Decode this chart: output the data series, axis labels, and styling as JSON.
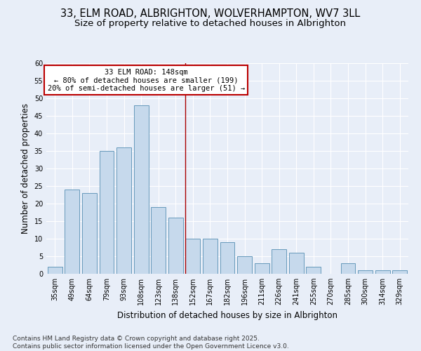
{
  "title_line1": "33, ELM ROAD, ALBRIGHTON, WOLVERHAMPTON, WV7 3LL",
  "title_line2": "Size of property relative to detached houses in Albrighton",
  "xlabel": "Distribution of detached houses by size in Albrighton",
  "ylabel": "Number of detached properties",
  "bar_labels": [
    "35sqm",
    "49sqm",
    "64sqm",
    "79sqm",
    "93sqm",
    "108sqm",
    "123sqm",
    "138sqm",
    "152sqm",
    "167sqm",
    "182sqm",
    "196sqm",
    "211sqm",
    "226sqm",
    "241sqm",
    "255sqm",
    "270sqm",
    "285sqm",
    "300sqm",
    "314sqm",
    "329sqm"
  ],
  "bar_values": [
    2,
    24,
    23,
    35,
    36,
    48,
    19,
    16,
    10,
    10,
    9,
    5,
    3,
    7,
    6,
    2,
    0,
    3,
    1,
    1,
    1
  ],
  "bar_color": "#c6d9ec",
  "bar_edge_color": "#6699bb",
  "vline_x_idx": 8,
  "vline_color": "#aa0000",
  "annotation_title": "33 ELM ROAD: 148sqm",
  "annotation_line2": "← 80% of detached houses are smaller (199)",
  "annotation_line3": "20% of semi-detached houses are larger (51) →",
  "annotation_box_color": "#bb0000",
  "background_color": "#e8eef8",
  "plot_bg_color": "#e8eef8",
  "ylim": [
    0,
    60
  ],
  "yticks": [
    0,
    5,
    10,
    15,
    20,
    25,
    30,
    35,
    40,
    45,
    50,
    55,
    60
  ],
  "footer_line1": "Contains HM Land Registry data © Crown copyright and database right 2025.",
  "footer_line2": "Contains public sector information licensed under the Open Government Licence v3.0.",
  "title_fontsize": 10.5,
  "subtitle_fontsize": 9.5,
  "axis_label_fontsize": 8.5,
  "tick_fontsize": 7,
  "annotation_fontsize": 7.5,
  "footer_fontsize": 6.5
}
